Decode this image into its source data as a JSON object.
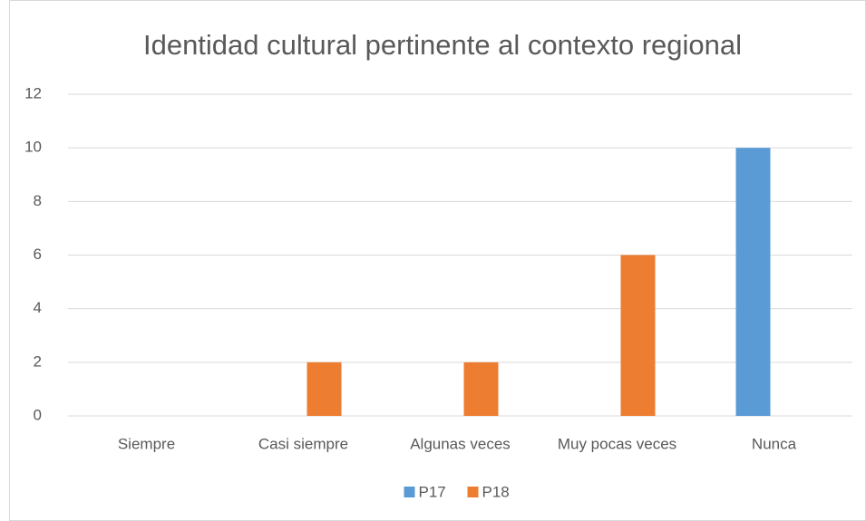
{
  "chart_data": {
    "type": "bar",
    "title": "Identidad cultural pertinente al contexto regional",
    "categories": [
      "Siempre",
      "Casi siempre",
      "Algunas veces",
      "Muy pocas veces",
      "Nunca"
    ],
    "series": [
      {
        "name": "P17",
        "color": "#5b9bd5",
        "values": [
          0,
          0,
          0,
          0,
          10
        ]
      },
      {
        "name": "P18",
        "color": "#ed7d31",
        "values": [
          0,
          2,
          2,
          6,
          0
        ]
      }
    ],
    "ylim": [
      0,
      12
    ],
    "yticks": [
      0,
      2,
      4,
      6,
      8,
      10,
      12
    ],
    "grid": true,
    "legend": "bottom"
  }
}
